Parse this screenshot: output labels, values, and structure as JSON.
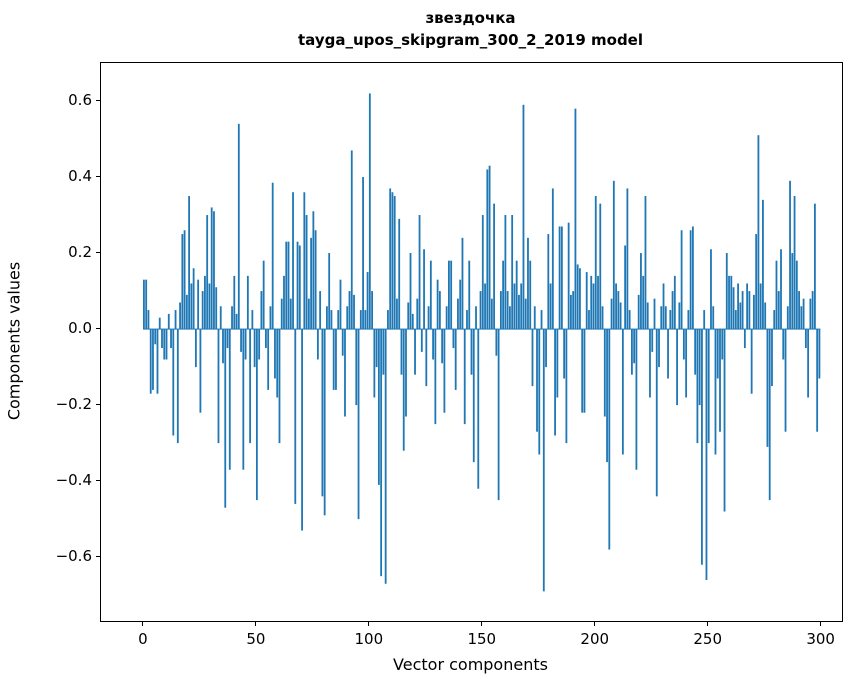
{
  "figure": {
    "title": "звездочка",
    "subtitle": "tayga_upos_skipgram_300_2_2019 model",
    "xlabel": "Vector components",
    "ylabel": "Components values"
  },
  "axes": {
    "xticks": [
      {
        "v": 0,
        "label": "0"
      },
      {
        "v": 50,
        "label": "50"
      },
      {
        "v": 100,
        "label": "100"
      },
      {
        "v": 150,
        "label": "150"
      },
      {
        "v": 200,
        "label": "200"
      },
      {
        "v": 250,
        "label": "250"
      },
      {
        "v": 300,
        "label": "300"
      }
    ],
    "yticks": [
      {
        "v": 0.6,
        "label": "0.6"
      },
      {
        "v": 0.4,
        "label": "0.4"
      },
      {
        "v": 0.2,
        "label": "0.2"
      },
      {
        "v": 0.0,
        "label": "0.0"
      },
      {
        "v": -0.2,
        "label": "−0.2"
      },
      {
        "v": -0.4,
        "label": "−0.4"
      },
      {
        "v": -0.6,
        "label": "−0.6"
      }
    ]
  },
  "chart_data": {
    "type": "bar",
    "title": "звездочка",
    "subtitle": "tayga_upos_skipgram_300_2_2019 model",
    "xlabel": "Vector components",
    "ylabel": "Components values",
    "legend": "none",
    "grid": false,
    "xlim": [
      -19,
      309
    ],
    "ylim": [
      -0.768,
      0.7
    ],
    "bar_color": "#1f77b4",
    "bar_width": 0.8,
    "n": 300,
    "x_start": 0,
    "values": [
      0.13,
      0.13,
      0.05,
      -0.17,
      -0.16,
      -0.04,
      -0.17,
      0.03,
      -0.05,
      -0.08,
      -0.08,
      0.04,
      -0.05,
      -0.28,
      0.05,
      -0.3,
      0.07,
      0.25,
      0.26,
      0.09,
      0.35,
      0.12,
      0.16,
      -0.1,
      0.13,
      -0.22,
      0.1,
      0.14,
      0.3,
      0.12,
      0.32,
      0.31,
      0.11,
      -0.3,
      0.06,
      -0.09,
      -0.47,
      -0.05,
      -0.37,
      0.06,
      0.14,
      0.04,
      0.54,
      -0.06,
      -0.37,
      -0.08,
      0.14,
      -0.3,
      0.05,
      -0.1,
      -0.45,
      -0.08,
      0.1,
      0.18,
      -0.05,
      -0.16,
      0.06,
      0.385,
      -0.13,
      -0.18,
      -0.3,
      0.08,
      0.14,
      0.23,
      0.23,
      0.08,
      0.36,
      -0.46,
      0.23,
      0.22,
      -0.53,
      0.36,
      0.3,
      0.08,
      0.24,
      0.31,
      0.26,
      -0.08,
      0.1,
      -0.44,
      -0.49,
      0.06,
      0.2,
      0.05,
      -0.16,
      -0.16,
      0.05,
      0.13,
      -0.07,
      -0.23,
      0.06,
      0.1,
      0.47,
      0.09,
      -0.2,
      -0.5,
      0.05,
      0.4,
      0.05,
      0.15,
      0.62,
      0.1,
      -0.18,
      -0.1,
      -0.41,
      -0.65,
      -0.12,
      -0.67,
      0.05,
      0.37,
      0.36,
      0.35,
      0.08,
      0.29,
      -0.12,
      -0.32,
      -0.23,
      0.07,
      0.2,
      0.04,
      -0.12,
      0.08,
      0.3,
      -0.06,
      0.21,
      -0.15,
      0.06,
      0.18,
      -0.08,
      -0.25,
      0.13,
      0.1,
      -0.09,
      -0.22,
      0.06,
      0.18,
      0.18,
      -0.05,
      -0.16,
      0.08,
      0.13,
      0.24,
      -0.25,
      0.05,
      0.18,
      -0.12,
      -0.35,
      0.06,
      -0.42,
      0.1,
      0.3,
      0.12,
      0.42,
      0.43,
      0.08,
      0.33,
      -0.07,
      -0.45,
      0.1,
      0.18,
      0.3,
      0.1,
      0.06,
      0.3,
      0.12,
      0.18,
      0.09,
      0.12,
      0.59,
      0.08,
      0.24,
      0.18,
      -0.15,
      0.06,
      -0.27,
      -0.33,
      0.05,
      -0.69,
      -0.1,
      0.25,
      0.12,
      0.37,
      -0.28,
      -0.18,
      0.27,
      0.27,
      -0.13,
      -0.3,
      0.28,
      0.09,
      0.1,
      0.58,
      0.17,
      0.16,
      -0.22,
      -0.22,
      0.15,
      0.05,
      0.14,
      0.12,
      0.35,
      0.14,
      0.33,
      0.06,
      -0.23,
      -0.35,
      -0.58,
      0.08,
      0.39,
      0.12,
      0.1,
      0.07,
      -0.33,
      0.22,
      0.37,
      0.05,
      -0.12,
      -0.09,
      -0.37,
      0.09,
      0.2,
      0.14,
      0.35,
      0.07,
      -0.18,
      -0.06,
      0.08,
      -0.44,
      -0.1,
      0.06,
      0.12,
      0.06,
      -0.13,
      0.05,
      0.1,
      0.14,
      -0.2,
      0.07,
      0.26,
      -0.08,
      -0.18,
      0.05,
      0.26,
      0.27,
      -0.12,
      -0.3,
      -0.2,
      -0.62,
      0.05,
      -0.66,
      -0.3,
      0.21,
      0.06,
      -0.33,
      -0.13,
      -0.27,
      -0.08,
      -0.48,
      0.2,
      0.14,
      0.14,
      0.11,
      0.05,
      0.12,
      0.07,
      0.1,
      -0.05,
      0.12,
      0.1,
      -0.17,
      0.09,
      0.25,
      0.51,
      0.12,
      0.34,
      0.07,
      -0.31,
      -0.45,
      -0.15,
      0.05,
      0.18,
      0.1,
      0.21,
      -0.08,
      -0.27,
      0.06,
      0.39,
      0.2,
      0.35,
      0.18,
      0.1,
      0.06,
      0.08,
      -0.05,
      -0.18,
      0.08,
      0.1,
      0.33,
      -0.27,
      -0.13
    ]
  }
}
